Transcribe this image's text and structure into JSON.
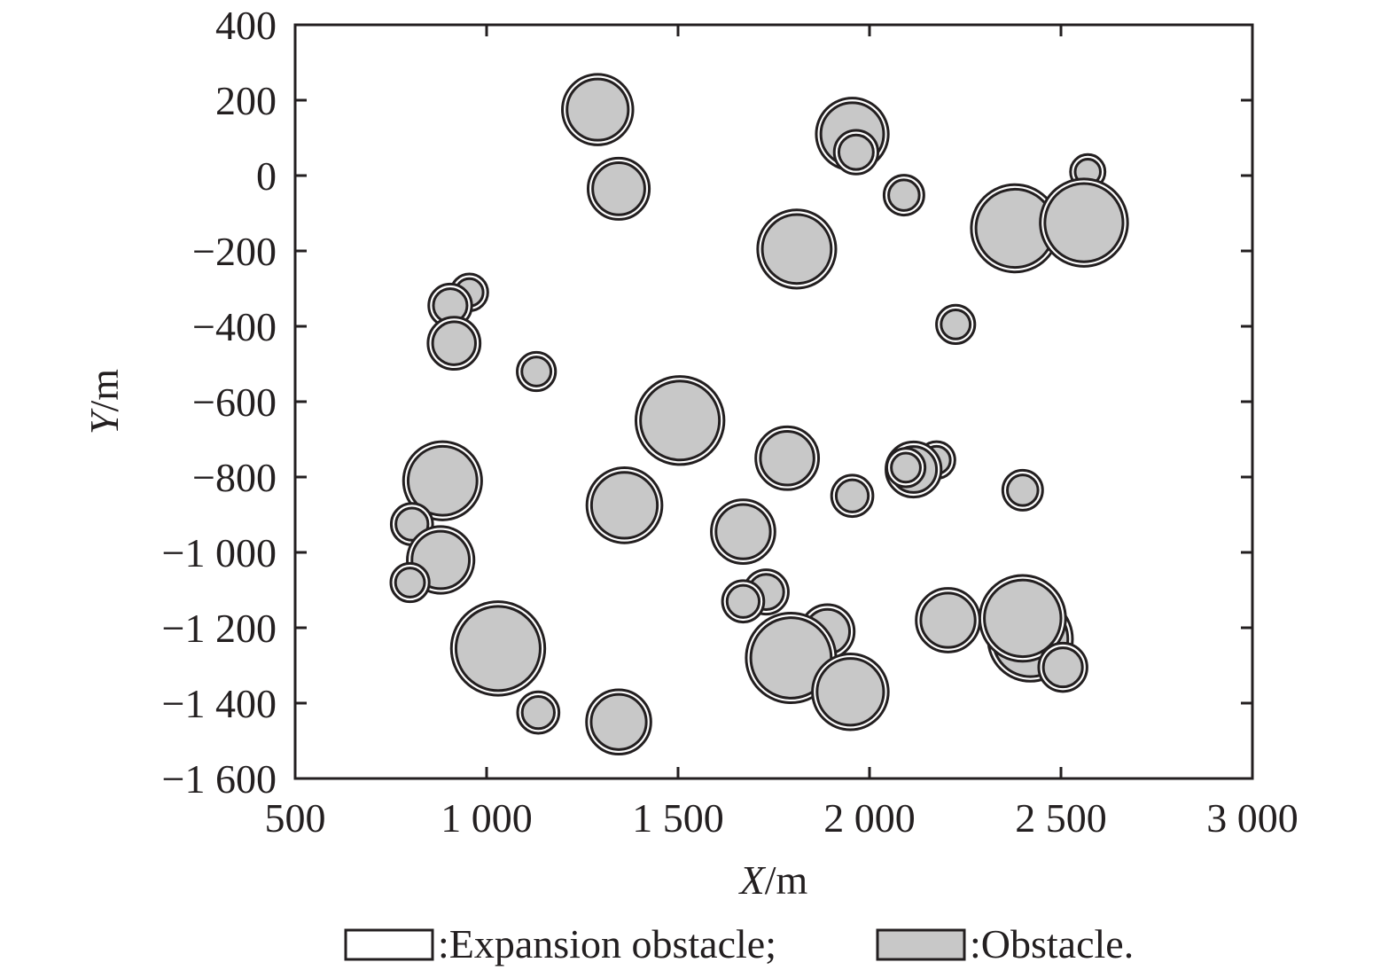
{
  "chart_data": {
    "type": "scatter",
    "xlabel": {
      "var": "X",
      "unit": "/m"
    },
    "ylabel": {
      "var": "Y",
      "unit": "/m"
    },
    "xlim": [
      500,
      3000
    ],
    "ylim": [
      -1600,
      400
    ],
    "xticks": [
      500,
      1000,
      1500,
      2000,
      2500,
      3000
    ],
    "xtick_labels": [
      "500",
      "1 000",
      "1 500",
      "2 000",
      "2 500",
      "3 000"
    ],
    "yticks": [
      400,
      200,
      0,
      -200,
      -400,
      -600,
      -800,
      -1000,
      -1200,
      -1400,
      -1600
    ],
    "ytick_labels": [
      "400",
      "200",
      "0",
      "−200",
      "−400",
      "−600",
      "−800",
      "−1 000",
      "−1 200",
      "−1 400",
      "−1 600"
    ],
    "grid": false,
    "legend_position": "bottom",
    "legend": [
      {
        "label": ":Expansion obstacle;",
        "fill": "#ffffff"
      },
      {
        "label": ":Obstacle.",
        "fill": "#c8c8c8"
      }
    ],
    "colors": {
      "obstacle": "#c8c8c8",
      "outline": "#231f20",
      "expansion": "#ffffff"
    },
    "expansion_margin_m": 12,
    "obstacles": [
      {
        "x": 1290,
        "y": 175,
        "r": 80
      },
      {
        "x": 1345,
        "y": -35,
        "r": 68
      },
      {
        "x": 1955,
        "y": 110,
        "r": 82
      },
      {
        "x": 1965,
        "y": 62,
        "r": 45
      },
      {
        "x": 2090,
        "y": -52,
        "r": 40
      },
      {
        "x": 2570,
        "y": 10,
        "r": 33
      },
      {
        "x": 1810,
        "y": -195,
        "r": 90
      },
      {
        "x": 2380,
        "y": -140,
        "r": 102
      },
      {
        "x": 2560,
        "y": -125,
        "r": 102
      },
      {
        "x": 955,
        "y": -310,
        "r": 36
      },
      {
        "x": 905,
        "y": -345,
        "r": 44
      },
      {
        "x": 915,
        "y": -445,
        "r": 56
      },
      {
        "x": 1130,
        "y": -520,
        "r": 38
      },
      {
        "x": 2225,
        "y": -395,
        "r": 38
      },
      {
        "x": 1505,
        "y": -650,
        "r": 103
      },
      {
        "x": 1785,
        "y": -750,
        "r": 70
      },
      {
        "x": 2175,
        "y": -755,
        "r": 36
      },
      {
        "x": 2115,
        "y": -780,
        "r": 60
      },
      {
        "x": 2095,
        "y": -775,
        "r": 38
      },
      {
        "x": 1955,
        "y": -850,
        "r": 42
      },
      {
        "x": 2400,
        "y": -835,
        "r": 40
      },
      {
        "x": 885,
        "y": -810,
        "r": 90
      },
      {
        "x": 1360,
        "y": -875,
        "r": 86
      },
      {
        "x": 1670,
        "y": -945,
        "r": 71
      },
      {
        "x": 805,
        "y": -925,
        "r": 42
      },
      {
        "x": 880,
        "y": -1020,
        "r": 75
      },
      {
        "x": 800,
        "y": -1080,
        "r": 38
      },
      {
        "x": 1730,
        "y": -1105,
        "r": 46
      },
      {
        "x": 1670,
        "y": -1130,
        "r": 42
      },
      {
        "x": 1890,
        "y": -1210,
        "r": 58
      },
      {
        "x": 1795,
        "y": -1280,
        "r": 105
      },
      {
        "x": 1950,
        "y": -1370,
        "r": 87
      },
      {
        "x": 1030,
        "y": -1255,
        "r": 110
      },
      {
        "x": 1135,
        "y": -1425,
        "r": 42
      },
      {
        "x": 1345,
        "y": -1450,
        "r": 72
      },
      {
        "x": 2205,
        "y": -1180,
        "r": 71
      },
      {
        "x": 2420,
        "y": -1230,
        "r": 98
      },
      {
        "x": 2400,
        "y": -1175,
        "r": 100
      },
      {
        "x": 2505,
        "y": -1305,
        "r": 51
      }
    ]
  }
}
